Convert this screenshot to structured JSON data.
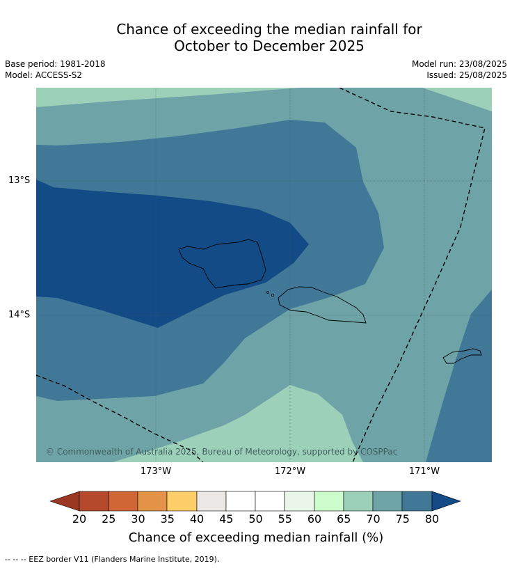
{
  "title": {
    "line1": "Chance of exceeding the median rainfall for",
    "line2": "October to December 2025"
  },
  "meta": {
    "base_period": "Base period: 1981-2018",
    "model": "Model: ACCESS-S2",
    "model_run": "Model run: 23/08/2025",
    "issued": "Issued: 25/08/2025"
  },
  "map": {
    "lat_labels": [
      "13°S",
      "14°S"
    ],
    "lon_labels": [
      "173°W",
      "172°W",
      "171°W"
    ],
    "copyright": "© Commonwealth of Australia 2025, Bureau of Meteorology, supported by COSPPac"
  },
  "colors": {
    "c20_25": "#b5492b",
    "c25_30": "#d06535",
    "c30_35": "#e39448",
    "c35_40": "#fdcd6a",
    "c40_45": "#ece8e6",
    "c45_55": "#ffffff",
    "c55_60": "#eaf6ea",
    "c60_65": "#ccfccc",
    "c65_70": "#9dd0b8",
    "c70_75": "#6ea3a8",
    "c75_80": "#427897",
    "c_over80": "#124b86",
    "c_under20": "#9b3821"
  },
  "colorbar": {
    "ticks": [
      "20",
      "25",
      "30",
      "35",
      "40",
      "45",
      "50",
      "55",
      "60",
      "65",
      "70",
      "75",
      "80"
    ],
    "label": "Chance of exceeding median rainfall (%)"
  },
  "footnote": "--  --  -- EEZ border V11 (Flanders Marine Institute, 2019)."
}
